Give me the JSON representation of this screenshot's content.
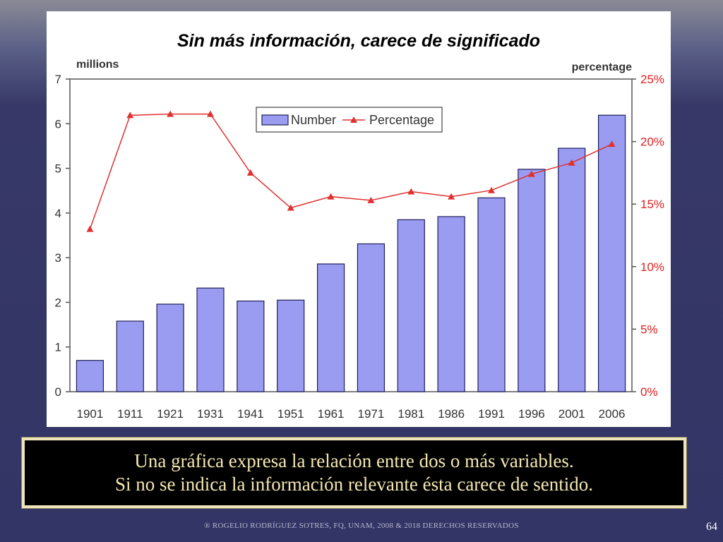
{
  "title": "Sin más información, carece de significado",
  "chart_data": {
    "type": "bar",
    "categories": [
      "1901",
      "1911",
      "1921",
      "1931",
      "1941",
      "1951",
      "1961",
      "1971",
      "1981",
      "1986",
      "1991",
      "1996",
      "2001",
      "2006"
    ],
    "series": [
      {
        "name": "Number",
        "type": "bar",
        "axis": "left",
        "values": [
          0.7,
          1.58,
          1.96,
          2.32,
          2.03,
          2.05,
          2.86,
          3.31,
          3.85,
          3.92,
          4.34,
          4.98,
          5.45,
          6.19
        ]
      },
      {
        "name": "Percentage",
        "type": "line",
        "axis": "right",
        "values": [
          13.0,
          22.1,
          22.2,
          22.2,
          17.5,
          14.7,
          15.6,
          15.3,
          16.0,
          15.6,
          16.1,
          17.4,
          18.3,
          19.8
        ]
      }
    ],
    "ylabel_left": "millions",
    "ylabel_right": "percentage",
    "ylim_left": [
      0,
      7
    ],
    "ylim_right": [
      0,
      25
    ],
    "yticks_left": [
      "0",
      "1",
      "2",
      "3",
      "4",
      "5",
      "6",
      "7"
    ],
    "yticks_right": [
      "0%",
      "5%",
      "10%",
      "15%",
      "20%",
      "25%"
    ],
    "legend": "top-center",
    "grid": false,
    "colors": {
      "bar_fill": "#9a9cf2",
      "bar_stroke": "#1e1e5a",
      "line": "#e03030",
      "right_axis_text": "#e02020"
    }
  },
  "caption": {
    "line1": "Una gráfica expresa la relación entre dos o más variables.",
    "line2": "Si no se indica la información relevante ésta carece de sentido."
  },
  "footer": "® ROGELIO RODRÍGUEZ SOTRES, FQ, UNAM, 2008 &  2018 DERECHOS RESERVADOS",
  "page_number": "64"
}
